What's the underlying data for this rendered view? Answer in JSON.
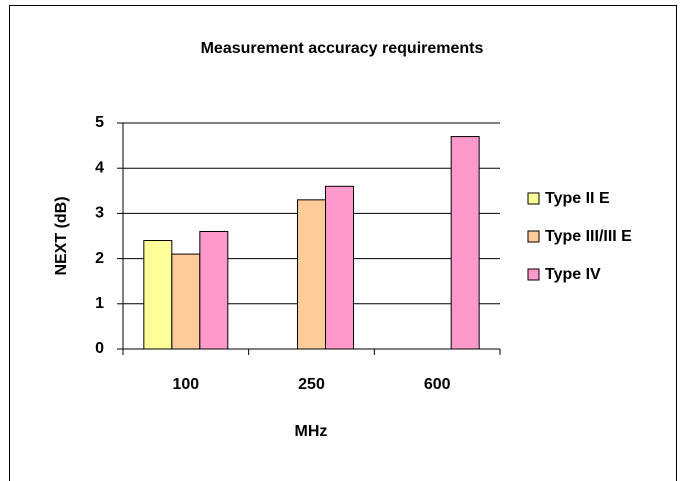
{
  "chart_data": {
    "type": "bar",
    "title": "Measurement accuracy requirements",
    "x_label": "MHz",
    "y_label": "NEXT (dB)",
    "categories": [
      "100",
      "250",
      "600"
    ],
    "series": [
      {
        "name": "Type II E",
        "color": "#ffff99",
        "values": [
          2.4,
          null,
          null
        ]
      },
      {
        "name": "Type III/III E",
        "color": "#ffcc99",
        "values": [
          2.1,
          3.3,
          null
        ]
      },
      {
        "name": "Type IV",
        "color": "#ff99cc",
        "values": [
          2.6,
          3.6,
          4.7
        ]
      }
    ],
    "ylim": [
      0,
      5
    ],
    "yticks": [
      0,
      1,
      2,
      3,
      4,
      5
    ],
    "grid": true,
    "legend": "right"
  }
}
